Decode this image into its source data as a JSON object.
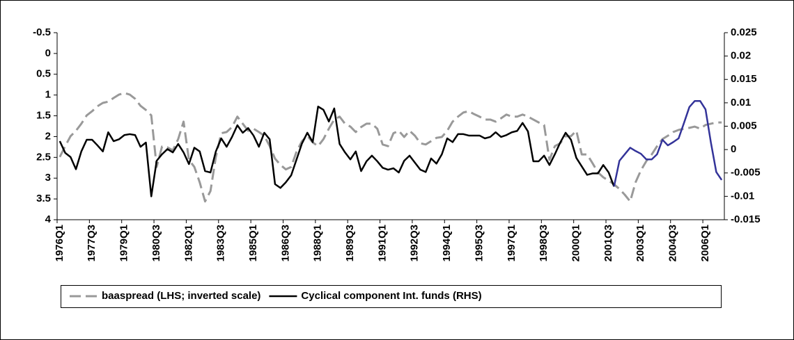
{
  "chart_data": {
    "type": "line",
    "categories": [
      "1976Q1",
      null,
      null,
      null,
      null,
      null,
      "1977Q3",
      null,
      null,
      null,
      null,
      null,
      "1979Q1",
      null,
      null,
      null,
      null,
      null,
      "1980Q3",
      null,
      null,
      null,
      null,
      null,
      "1982Q1",
      null,
      null,
      null,
      null,
      null,
      "1983Q3",
      null,
      null,
      null,
      null,
      null,
      "1985Q1",
      null,
      null,
      null,
      null,
      null,
      "1986Q3",
      null,
      null,
      null,
      null,
      null,
      "1988Q1",
      null,
      null,
      null,
      null,
      null,
      "1989Q3",
      null,
      null,
      null,
      null,
      null,
      "1991Q1",
      null,
      null,
      null,
      null,
      null,
      "1992Q3",
      null,
      null,
      null,
      null,
      null,
      "1994Q1",
      null,
      null,
      null,
      null,
      null,
      "1995Q3",
      null,
      null,
      null,
      null,
      null,
      "1997Q1",
      null,
      null,
      null,
      null,
      null,
      "1998Q3",
      null,
      null,
      null,
      null,
      null,
      "2000Q1",
      null,
      null,
      null,
      null,
      null,
      "2001Q3",
      null,
      null,
      null,
      null,
      null,
      "2003Q1",
      null,
      null,
      null,
      null,
      null,
      "2004Q3",
      null,
      null,
      null,
      null,
      null,
      "2006Q1",
      null,
      null,
      null
    ],
    "series": [
      {
        "name": "baaspread (LHS; inverted scale)",
        "color": "#999999",
        "style": "dashed",
        "values": [
          2.49,
          2.23,
          1.99,
          1.86,
          1.69,
          1.49,
          1.39,
          1.27,
          1.19,
          1.16,
          1.07,
          0.99,
          0.95,
          0.99,
          1.09,
          1.26,
          1.36,
          1.49,
          2.73,
          2.24,
          2.26,
          2.33,
          2.06,
          1.64,
          2.56,
          2.73,
          3.1,
          3.56,
          3.31,
          2.49,
          1.92,
          1.89,
          1.77,
          1.52,
          1.69,
          1.86,
          1.81,
          1.89,
          1.98,
          2.23,
          2.53,
          2.68,
          2.79,
          2.73,
          2.36,
          2.11,
          1.98,
          2.14,
          2.23,
          2.06,
          1.81,
          1.59,
          1.52,
          1.69,
          1.76,
          1.89,
          1.77,
          1.69,
          1.69,
          1.81,
          2.19,
          2.23,
          1.92,
          1.86,
          2.01,
          1.86,
          1.98,
          2.16,
          2.19,
          2.11,
          2.03,
          2.01,
          1.86,
          1.64,
          1.52,
          1.42,
          1.39,
          1.46,
          1.52,
          1.59,
          1.59,
          1.64,
          1.56,
          1.47,
          1.52,
          1.52,
          1.47,
          1.52,
          1.59,
          1.66,
          1.72,
          2.56,
          2.23,
          2.16,
          1.99,
          1.99,
          1.86,
          2.43,
          2.43,
          2.64,
          2.86,
          2.98,
          3.06,
          3.15,
          3.26,
          3.4,
          3.56,
          3.1,
          2.81,
          2.59,
          2.43,
          2.23,
          2.06,
          1.98,
          1.89,
          1.84,
          1.81,
          1.79,
          1.76,
          1.81,
          1.72,
          1.69,
          1.66,
          1.66
        ]
      },
      {
        "name": "Cyclical component Int. funds (RHS)",
        "color": "#000000",
        "axis": "y2",
        "highlight": {
          "from": 103,
          "color": "#333399"
        },
        "values": [
          0.0018,
          -0.0007,
          -0.0016,
          -0.0042,
          -0.0004,
          0.0021,
          0.0021,
          0.0009,
          -0.0004,
          0.0037,
          0.0018,
          0.0022,
          0.0031,
          0.0033,
          0.0031,
          0.0006,
          0.0015,
          -0.01,
          -0.0024,
          -0.001,
          0.0001,
          -0.0006,
          0.0012,
          -0.0006,
          -0.0031,
          0.0004,
          -0.0004,
          -0.0046,
          -0.0049,
          -0.0004,
          0.0024,
          0.0006,
          0.0027,
          0.0052,
          0.0036,
          0.0046,
          0.003,
          0.0006,
          0.0036,
          0.0022,
          -0.0074,
          -0.0082,
          -0.007,
          -0.0055,
          -0.0021,
          0.0013,
          0.0036,
          0.0016,
          0.0092,
          0.0085,
          0.006,
          0.0088,
          0.0012,
          -0.0006,
          -0.0021,
          -0.0004,
          -0.0046,
          -0.0025,
          -0.0013,
          -0.0025,
          -0.0039,
          -0.0043,
          -0.004,
          -0.0049,
          -0.0024,
          -0.0013,
          -0.0028,
          -0.0043,
          -0.0048,
          -0.0019,
          -0.003,
          -0.001,
          0.0024,
          0.0016,
          0.0033,
          0.0033,
          0.003,
          0.003,
          0.003,
          0.0024,
          0.0027,
          0.0037,
          0.0027,
          0.0031,
          0.0037,
          0.004,
          0.0057,
          0.0039,
          -0.0025,
          -0.0025,
          -0.0013,
          -0.0033,
          -0.001,
          0.0015,
          0.0036,
          0.0021,
          -0.0018,
          -0.0036,
          -0.0054,
          -0.0051,
          -0.0051,
          -0.0033,
          -0.0049,
          -0.0079,
          -0.0024,
          -0.001,
          0.0004,
          -0.0003,
          -0.0009,
          -0.0021,
          -0.0021,
          -0.001,
          0.0021,
          0.0009,
          0.0016,
          0.0024,
          0.0057,
          0.0091,
          0.0104,
          0.0104,
          0.0086,
          0.0015,
          -0.0048,
          -0.0065
        ]
      }
    ],
    "ylim": [
      -0.5,
      4
    ],
    "yticks": [
      -0.5,
      0,
      0.5,
      1,
      1.5,
      2,
      2.5,
      3,
      3.5,
      4
    ],
    "inverted": true,
    "y2lim": [
      -0.015,
      0.025
    ],
    "y2ticks": [
      -0.015,
      -0.01,
      -0.005,
      0,
      0.005,
      0.01,
      0.015,
      0.02,
      0.025
    ],
    "legend": "bottom"
  }
}
